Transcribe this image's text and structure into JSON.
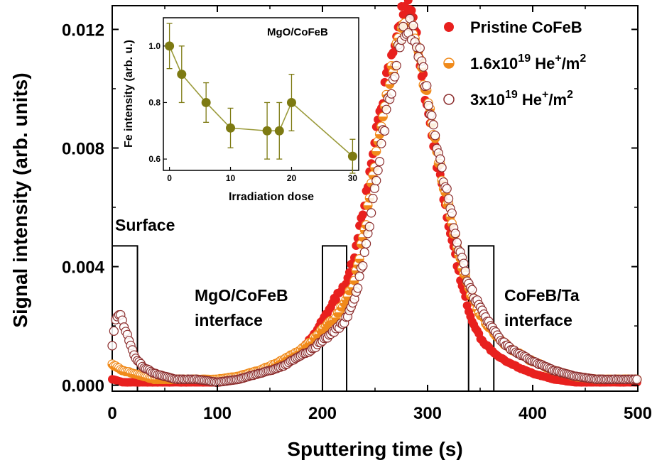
{
  "chart_data": [
    {
      "type": "scatter",
      "xlabel": "Sputtering time (s)",
      "ylabel": "Signal intensity (arb. units)",
      "xlim": [
        0,
        500
      ],
      "ylim": [
        -0.0002,
        0.0128
      ],
      "xticks": [
        0,
        100,
        200,
        300,
        400,
        500
      ],
      "yticks": [
        0.0,
        0.004,
        0.008,
        0.012
      ],
      "ytick_labels": [
        "0.000",
        "0.004",
        "0.008",
        "0.012"
      ],
      "grid": false,
      "legend_position": "top-right",
      "series": [
        {
          "name": "Pristine CoFeB",
          "color": "#e8201e",
          "marker": "filled-circle",
          "x": [
            0,
            10,
            20,
            30,
            40,
            50,
            60,
            80,
            100,
            120,
            140,
            160,
            170,
            180,
            190,
            200,
            205,
            210,
            215,
            220,
            225,
            230,
            240,
            250,
            260,
            270,
            275,
            280,
            285,
            290,
            295,
            300,
            310,
            320,
            330,
            340,
            350,
            360,
            370,
            380,
            400,
            420,
            440,
            460,
            480,
            500
          ],
          "y": [
            0.0002,
            0.0001,
            0.0001,
            0.0001,
            0.0001,
            0.0001,
            0.0001,
            0.0001,
            0.0001,
            0.0002,
            0.0004,
            0.0007,
            0.0009,
            0.0012,
            0.0016,
            0.0022,
            0.0025,
            0.0028,
            0.0031,
            0.0033,
            0.0037,
            0.0043,
            0.0062,
            0.0083,
            0.0102,
            0.0118,
            0.0125,
            0.0127,
            0.0125,
            0.0116,
            0.0105,
            0.0093,
            0.0073,
            0.0054,
            0.0037,
            0.0024,
            0.0016,
            0.0012,
            0.0009,
            0.0007,
            0.0004,
            0.0002,
            0.0001,
            0.0001,
            0.0001,
            0.0001
          ]
        },
        {
          "name": "1.6x10^19 He+/m^2",
          "color": "#f08a1a",
          "marker": "half-filled-circle",
          "x": [
            0,
            5,
            10,
            20,
            30,
            40,
            50,
            60,
            80,
            100,
            120,
            140,
            160,
            170,
            180,
            190,
            200,
            210,
            220,
            230,
            240,
            250,
            260,
            270,
            275,
            280,
            285,
            290,
            295,
            300,
            310,
            320,
            330,
            340,
            350,
            360,
            370,
            380,
            400,
            420,
            440,
            460,
            480,
            500
          ],
          "y": [
            0.0007,
            0.0006,
            0.0005,
            0.0004,
            0.0003,
            0.0002,
            0.0002,
            0.0002,
            0.0002,
            0.0002,
            0.0003,
            0.0005,
            0.0008,
            0.001,
            0.0012,
            0.0015,
            0.0019,
            0.0022,
            0.0027,
            0.0035,
            0.0052,
            0.0075,
            0.0096,
            0.0112,
            0.0118,
            0.0121,
            0.0119,
            0.0113,
            0.0106,
            0.0095,
            0.0077,
            0.006,
            0.0044,
            0.0031,
            0.0024,
            0.0019,
            0.0015,
            0.0012,
            0.0008,
            0.0005,
            0.0003,
            0.0002,
            0.0002,
            0.0002
          ]
        },
        {
          "name": "3x10^19 He+/m^2",
          "color": "#8b2c2c",
          "marker": "open-circle",
          "x": [
            0,
            3,
            6,
            9,
            12,
            15,
            18,
            21,
            25,
            30,
            35,
            40,
            50,
            60,
            80,
            100,
            120,
            140,
            160,
            170,
            180,
            190,
            200,
            210,
            220,
            230,
            240,
            250,
            260,
            270,
            275,
            280,
            285,
            290,
            295,
            300,
            310,
            320,
            330,
            340,
            350,
            360,
            370,
            380,
            400,
            420,
            440,
            460,
            480,
            500
          ],
          "y": [
            0.0013,
            0.0022,
            0.0024,
            0.0023,
            0.0019,
            0.0016,
            0.0013,
            0.001,
            0.0008,
            0.0006,
            0.0005,
            0.0004,
            0.0003,
            0.0002,
            0.0002,
            0.0001,
            0.0002,
            0.0004,
            0.0006,
            0.0008,
            0.001,
            0.0012,
            0.0015,
            0.0018,
            0.0021,
            0.0028,
            0.0044,
            0.0066,
            0.009,
            0.0109,
            0.0116,
            0.0121,
            0.012,
            0.0115,
            0.0107,
            0.0097,
            0.0079,
            0.0062,
            0.0046,
            0.0033,
            0.0026,
            0.002,
            0.0015,
            0.0012,
            0.0008,
            0.0005,
            0.0003,
            0.0002,
            0.0002,
            0.0002
          ]
        }
      ],
      "annotations": [
        {
          "text": "Surface",
          "box_x": [
            0,
            24
          ],
          "box_ymax": 0.0047
        },
        {
          "text": "MgO/CoFeB\ninterface",
          "box_x": [
            200,
            223
          ],
          "box_ymax": 0.0047
        },
        {
          "text": "CoFeB/Ta\ninterface",
          "box_x": [
            339,
            363
          ],
          "box_ymax": 0.0047
        }
      ]
    },
    {
      "type": "scatter",
      "title": "MgO/CoFeB",
      "xlabel": "Irradiation dose",
      "ylabel": "Fe intensity (arb. u.)",
      "xlim": [
        -1,
        31
      ],
      "ylim": [
        0.56,
        1.1
      ],
      "xticks": [
        0,
        10,
        20,
        30
      ],
      "yticks": [
        0.6,
        0.8,
        1.0
      ],
      "ytick_labels": [
        "0.6",
        "0.8",
        "1.0"
      ],
      "color": "#7d7a12",
      "line_color": "#9a9a3a",
      "x": [
        0,
        2,
        6,
        10,
        16,
        18,
        20,
        30
      ],
      "y": [
        1.0,
        0.9,
        0.8,
        0.71,
        0.7,
        0.7,
        0.8,
        0.61
      ],
      "error": [
        0.08,
        0.1,
        0.07,
        0.07,
        0.1,
        0.1,
        0.1,
        0.06
      ]
    }
  ],
  "legend": [
    {
      "prefix": "Pristine CoFeB"
    },
    {
      "prefix": "1.6x10",
      "sup1": "19",
      "mid": " He",
      "sup2": "+",
      "suffix": "/m",
      "sup3": "2"
    },
    {
      "prefix": "3x10",
      "sup1": "19",
      "mid": " He",
      "sup2": "+",
      "suffix": "/m",
      "sup3": "2"
    }
  ],
  "annotation_text": {
    "surface": "Surface",
    "mgo_1": "MgO/CoFeB",
    "mgo_2": "interface",
    "ta_1": "CoFeB/Ta",
    "ta_2": "interface"
  }
}
